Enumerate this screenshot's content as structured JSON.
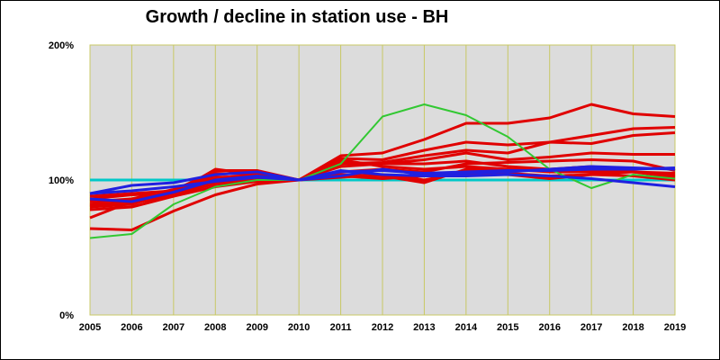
{
  "chart_data": {
    "type": "line",
    "title": "Growth / decline in station use - BH",
    "xlabel": "",
    "ylabel": "",
    "x": [
      "2005",
      "2006",
      "2007",
      "2008",
      "2009",
      "2010",
      "2011",
      "2012",
      "2013",
      "2014",
      "2015",
      "2016",
      "2017",
      "2018",
      "2019"
    ],
    "y_ticks": [
      "0%",
      "100%",
      "200%"
    ],
    "ylim": [
      0,
      200
    ],
    "grid": true,
    "legend": "none",
    "colors": {
      "plot_bg": "#dcdcdc",
      "grid": "#c8c864",
      "red": "#e00000",
      "blue": "#2020e0",
      "green": "#32c832",
      "cyan": "#00c8c8"
    },
    "series": [
      {
        "color": "#00c8c8",
        "values": [
          100,
          100,
          100,
          100,
          100,
          100,
          100,
          100,
          100,
          100,
          100,
          100,
          100,
          100,
          100
        ]
      },
      {
        "color": "#e00000",
        "values": [
          80,
          83,
          88,
          95,
          99,
          100,
          118,
          120,
          130,
          142,
          142,
          146,
          156,
          149,
          147
        ]
      },
      {
        "color": "#e00000",
        "values": [
          84,
          86,
          90,
          97,
          100,
          100,
          116,
          115,
          122,
          128,
          126,
          128,
          127,
          133,
          135
        ]
      },
      {
        "color": "#e00000",
        "values": [
          78,
          80,
          88,
          98,
          99,
          100,
          112,
          113,
          118,
          122,
          120,
          128,
          133,
          138,
          139
        ]
      },
      {
        "color": "#e00000",
        "values": [
          72,
          84,
          91,
          99,
          100,
          100,
          110,
          112,
          115,
          120,
          115,
          117,
          120,
          119,
          119
        ]
      },
      {
        "color": "#e00000",
        "values": [
          64,
          63,
          77,
          89,
          97,
          100,
          106,
          108,
          106,
          112,
          113,
          114,
          115,
          114,
          107
        ]
      },
      {
        "color": "#e00000",
        "values": [
          88,
          90,
          92,
          107,
          107,
          100,
          104,
          103,
          98,
          108,
          108,
          107,
          108,
          106,
          103
        ]
      },
      {
        "color": "#e00000",
        "values": [
          82,
          86,
          93,
          105,
          104,
          100,
          102,
          104,
          100,
          106,
          105,
          103,
          104,
          103,
          100
        ]
      },
      {
        "color": "#e00000",
        "values": [
          86,
          89,
          90,
          108,
          104,
          100,
          103,
          101,
          103,
          104,
          104,
          101,
          104,
          106,
          102
        ]
      },
      {
        "color": "#e00000",
        "values": [
          81,
          84,
          90,
          102,
          103,
          100,
          113,
          112,
          112,
          114,
          110,
          108,
          110,
          106,
          105
        ]
      },
      {
        "color": "#e00000",
        "values": [
          80,
          82,
          91,
          104,
          106,
          100,
          115,
          110,
          108,
          110,
          108,
          106,
          106,
          106,
          104
        ]
      },
      {
        "color": "#32c832",
        "values": [
          57,
          60,
          82,
          95,
          100,
          100,
          112,
          147,
          156,
          148,
          132,
          108,
          94,
          104,
          101
        ]
      },
      {
        "color": "#2020e0",
        "values": [
          90,
          96,
          98,
          104,
          106,
          100,
          106,
          107,
          105,
          106,
          107,
          107,
          108,
          108,
          109
        ]
      },
      {
        "color": "#2020e0",
        "values": [
          86,
          84,
          91,
          100,
          103,
          100,
          103,
          108,
          104,
          105,
          106,
          108,
          110,
          109,
          108
        ]
      },
      {
        "color": "#2020e0",
        "values": [
          90,
          92,
          95,
          99,
          102,
          100,
          107,
          104,
          103,
          103,
          104,
          103,
          101,
          98,
          95
        ]
      }
    ]
  }
}
